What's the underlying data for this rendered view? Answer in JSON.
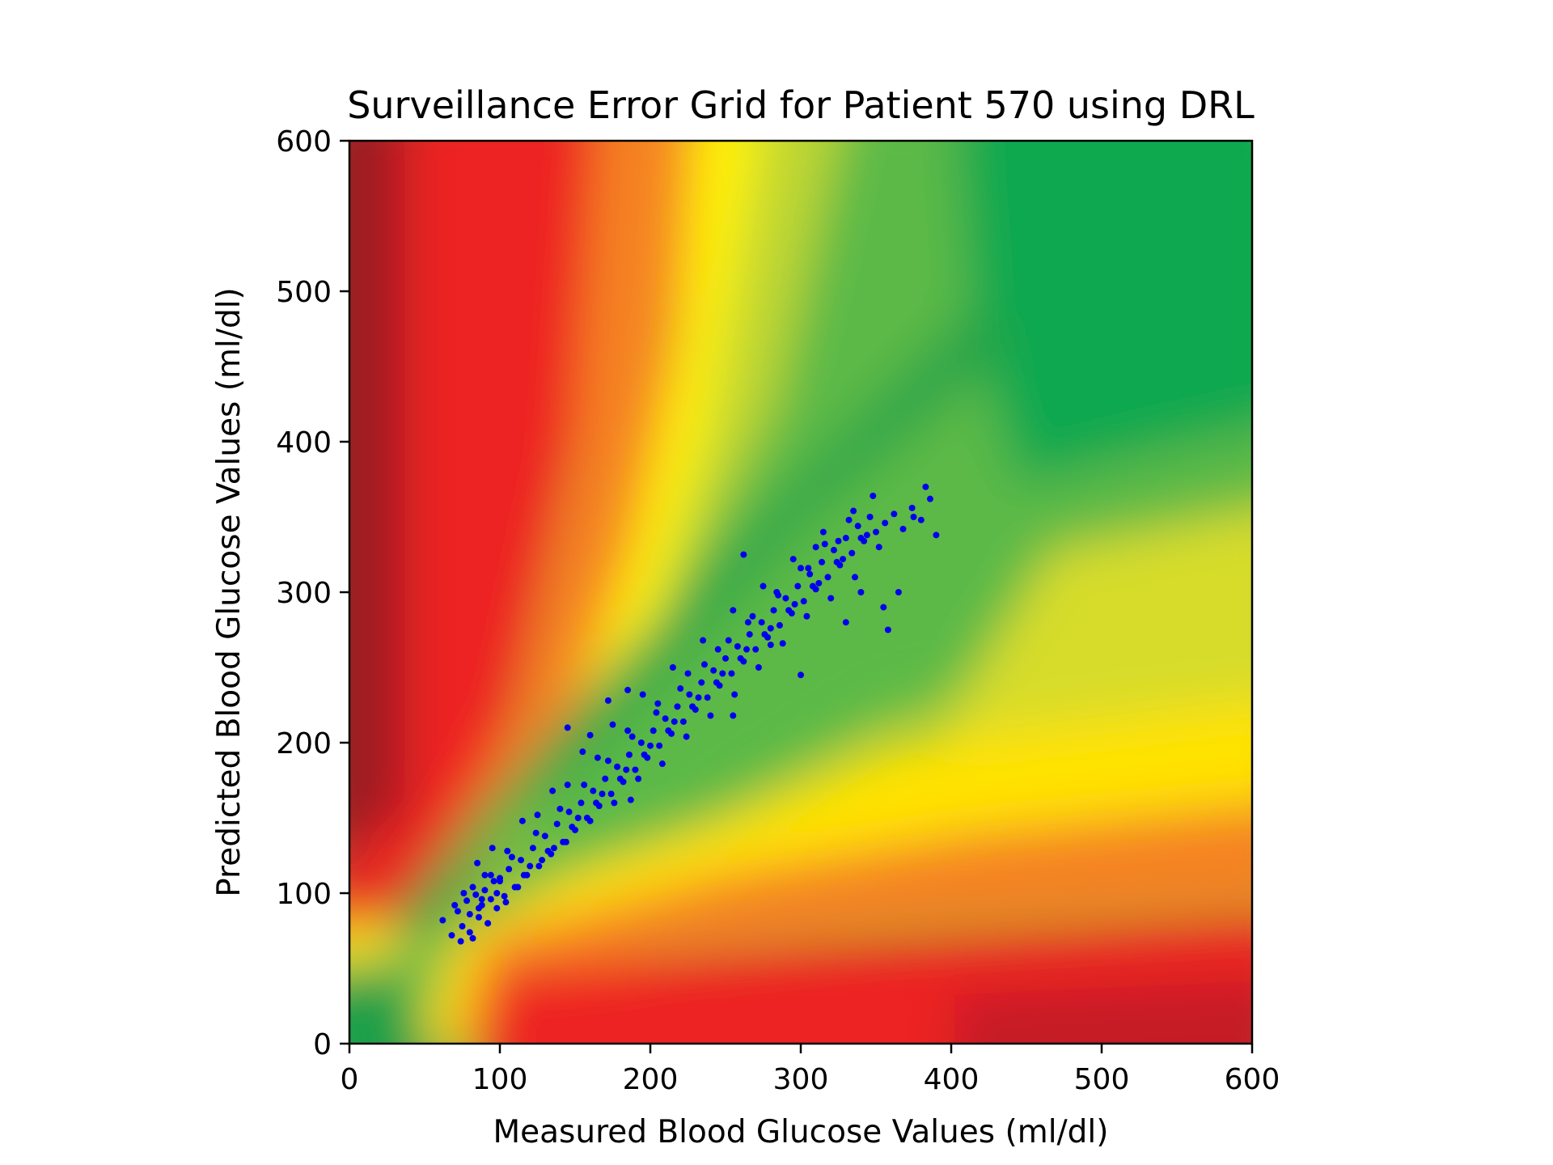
{
  "chart_data": {
    "type": "scatter",
    "title": "Surveillance Error Grid for Patient 570 using DRL",
    "xlabel": "Measured Blood Glucose Values (ml/dl)",
    "ylabel": "Predicted Blood Glucose Values (ml/dl)",
    "xlim": [
      0,
      600
    ],
    "ylim": [
      0,
      600
    ],
    "xticks": [
      "0",
      "100",
      "200",
      "300",
      "400",
      "500",
      "600"
    ],
    "yticks": [
      "0",
      "100",
      "200",
      "300",
      "400",
      "500",
      "600"
    ],
    "grid": false,
    "legend": "none",
    "marker_color": "#0000ee",
    "background": "risk heatmap: green along the diagonal (no risk), grading through yellow and orange to red and dark red away from it",
    "colors": {
      "dark_red": "#9c1c22",
      "red": "#ed2224",
      "orange": "#f58220",
      "yellow": "#fff200",
      "yellow_green": "#bed630",
      "green": "#5cb947",
      "dark_green": "#00a04a"
    },
    "series": [
      {
        "x": [
          62,
          68,
          72,
          75,
          78,
          80,
          82,
          84,
          86,
          88,
          90,
          92,
          94,
          96,
          98,
          100,
          103,
          106,
          110,
          114,
          118,
          122,
          126,
          130,
          134,
          138,
          142,
          146,
          150,
          154,
          158,
          162,
          166,
          170,
          174,
          178,
          182,
          186,
          190,
          194,
          198,
          202,
          206,
          210,
          214,
          218,
          222,
          226,
          230,
          234,
          238,
          242,
          246,
          250,
          254,
          258,
          262,
          266,
          270,
          274,
          278,
          282,
          286,
          290,
          294,
          298,
          302,
          306,
          310,
          314,
          318,
          322,
          326,
          330,
          334,
          338,
          342,
          346,
          350,
          356,
          362,
          368,
          374,
          380,
          386,
          70,
          76,
          82,
          88,
          94,
          100,
          108,
          116,
          124,
          132,
          140,
          148,
          156,
          164,
          172,
          180,
          188,
          196,
          204,
          212,
          220,
          228,
          236,
          244,
          252,
          260,
          268,
          276,
          284,
          292,
          300,
          308,
          316,
          324,
          332,
          340,
          348,
          74,
          80,
          86,
          92,
          98,
          104,
          112,
          120,
          128,
          136,
          144,
          152,
          160,
          168,
          176,
          184,
          192,
          200,
          208,
          216,
          224,
          232,
          240,
          248,
          256,
          264,
          272,
          280,
          288,
          296,
          304,
          312,
          320,
          328,
          336,
          344,
          352,
          85,
          90,
          95,
          105,
          115,
          125,
          135,
          145,
          155,
          165,
          175,
          185,
          195,
          205,
          215,
          225,
          235,
          245,
          255,
          265,
          275,
          285,
          295,
          305,
          315,
          325,
          335,
          145,
          160,
          172,
          185,
          187,
          255,
          262,
          280,
          300,
          310,
          330,
          340,
          355,
          358,
          365,
          375,
          383,
          390
        ],
        "y": [
          82,
          72,
          88,
          78,
          95,
          86,
          70,
          99,
          84,
          92,
          102,
          80,
          96,
          108,
          90,
          110,
          98,
          116,
          104,
          122,
          112,
          130,
          118,
          138,
          126,
          146,
          134,
          154,
          142,
          160,
          150,
          168,
          158,
          176,
          166,
          184,
          174,
          192,
          182,
          200,
          190,
          208,
          198,
          216,
          206,
          224,
          214,
          232,
          222,
          240,
          230,
          248,
          238,
          256,
          246,
          264,
          254,
          272,
          262,
          280,
          270,
          288,
          278,
          296,
          286,
          304,
          294,
          312,
          302,
          320,
          310,
          328,
          318,
          336,
          326,
          344,
          334,
          350,
          340,
          346,
          352,
          342,
          356,
          348,
          362,
          92,
          100,
          104,
          96,
          112,
          108,
          124,
          112,
          140,
          128,
          156,
          144,
          172,
          160,
          188,
          176,
          204,
          192,
          220,
          208,
          236,
          224,
          252,
          240,
          268,
          256,
          284,
          272,
          300,
          288,
          316,
          304,
          332,
          320,
          348,
          336,
          364,
          68,
          74,
          90,
          80,
          100,
          94,
          104,
          118,
          122,
          130,
          134,
          150,
          148,
          166,
          160,
          182,
          176,
          198,
          186,
          214,
          204,
          230,
          218,
          246,
          232,
          262,
          250,
          276,
          266,
          292,
          284,
          306,
          296,
          322,
          310,
          338,
          330,
          120,
          112,
          130,
          128,
          148,
          152,
          168,
          172,
          194,
          190,
          212,
          208,
          232,
          226,
          250,
          246,
          268,
          262,
          288,
          280,
          304,
          298,
          322,
          316,
          340,
          334,
          354,
          210,
          205,
          228,
          235,
          162,
          218,
          325,
          265,
          245,
          330,
          280,
          300,
          290,
          275,
          300,
          350,
          370,
          338
        ]
      }
    ]
  }
}
